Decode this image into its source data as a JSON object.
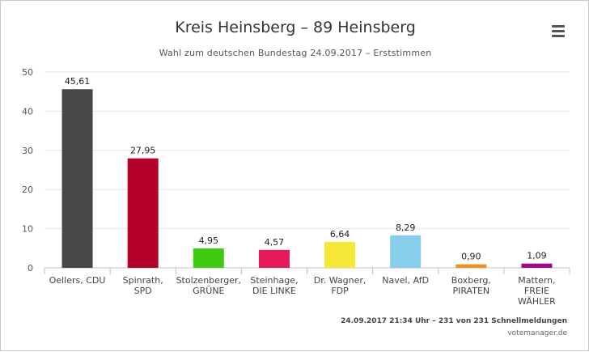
{
  "header": {
    "title": "Kreis Heinsberg – 89 Heinsberg",
    "subtitle": "Wahl zum deutschen Bundestag 24.09.2017 – Erststimmen"
  },
  "menu": {
    "icon": "hamburger-menu-icon"
  },
  "footer": {
    "info": "24.09.2017 21:34 Uhr – 231 von 231 Schnellmeldungen",
    "credit": "votemanager.de"
  },
  "chart_data": {
    "type": "bar",
    "title": "Kreis Heinsberg – 89 Heinsberg",
    "subtitle": "Wahl zum deutschen Bundestag 24.09.2017 – Erststimmen",
    "xlabel": "",
    "ylabel": "",
    "ylim": [
      0,
      50
    ],
    "yticks": [
      0,
      10,
      20,
      30,
      40,
      50
    ],
    "grid": true,
    "categories": [
      [
        "Oellers, CDU"
      ],
      [
        "Spinrath,",
        "SPD"
      ],
      [
        "Stolzenberger,",
        "GRÜNE"
      ],
      [
        "Steinhage,",
        "DIE LINKE"
      ],
      [
        "Dr. Wagner,",
        "FDP"
      ],
      [
        "Navel, AfD"
      ],
      [
        "Boxberg,",
        "PIRATEN"
      ],
      [
        "Mattern,",
        "FREIE",
        "WÄHLER"
      ]
    ],
    "values": [
      45.61,
      27.95,
      4.95,
      4.57,
      6.64,
      8.29,
      0.9,
      1.09
    ],
    "value_labels": [
      "45,61",
      "27,95",
      "4,95",
      "4,57",
      "6,64",
      "8,29",
      "0,90",
      "1,09"
    ],
    "colors": [
      "#474747",
      "#b5002a",
      "#3fcb12",
      "#e8195a",
      "#f7e737",
      "#87ceeb",
      "#f28c1a",
      "#9b0a8a"
    ]
  }
}
